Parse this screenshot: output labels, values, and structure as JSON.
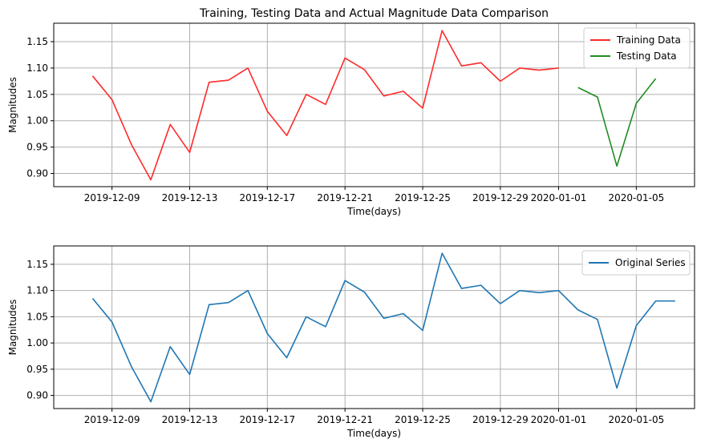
{
  "chart_data": [
    {
      "type": "line",
      "title": "Training, Testing Data and Actual Magnitude Data Comparison",
      "xlabel": "Time(days)",
      "ylabel": "Magnitudes",
      "ylim": [
        0.875,
        1.185
      ],
      "xlim": [
        "2019-12-06",
        "2020-01-08"
      ],
      "yticks": [
        0.9,
        0.95,
        1.0,
        1.05,
        1.1,
        1.15
      ],
      "ytick_labels": [
        "0.90",
        "0.95",
        "1.00",
        "1.05",
        "1.10",
        "1.15"
      ],
      "xticks": [
        "2019-12-09",
        "2019-12-13",
        "2019-12-17",
        "2019-12-21",
        "2019-12-25",
        "2019-12-29",
        "2020-01-01",
        "2020-01-05"
      ],
      "grid": true,
      "legend_position": "top-right",
      "series": [
        {
          "name": "Training Data",
          "color": "#ff2a2a",
          "x": [
            "2019-12-08",
            "2019-12-09",
            "2019-12-10",
            "2019-12-11",
            "2019-12-12",
            "2019-12-13",
            "2019-12-14",
            "2019-12-15",
            "2019-12-16",
            "2019-12-17",
            "2019-12-18",
            "2019-12-19",
            "2019-12-20",
            "2019-12-21",
            "2019-12-22",
            "2019-12-23",
            "2019-12-24",
            "2019-12-25",
            "2019-12-26",
            "2019-12-27",
            "2019-12-28",
            "2019-12-29",
            "2019-12-30",
            "2019-12-31",
            "2020-01-01"
          ],
          "y": [
            1.085,
            1.04,
            0.955,
            0.888,
            0.993,
            0.94,
            1.073,
            1.077,
            1.1,
            1.018,
            0.972,
            1.05,
            1.031,
            1.119,
            1.097,
            1.047,
            1.056,
            1.024,
            1.171,
            1.104,
            1.11,
            1.075,
            1.1,
            1.096,
            1.1
          ]
        },
        {
          "name": "Testing Data",
          "color": "#228b22",
          "x": [
            "2020-01-02",
            "2020-01-03",
            "2020-01-04",
            "2020-01-05",
            "2020-01-06"
          ],
          "y": [
            1.063,
            1.045,
            0.914,
            1.033,
            1.08
          ]
        }
      ]
    },
    {
      "type": "line",
      "title": "",
      "xlabel": "Time(days)",
      "ylabel": "Magnitudes",
      "ylim": [
        0.875,
        1.185
      ],
      "xlim": [
        "2019-12-06",
        "2020-01-08"
      ],
      "yticks": [
        0.9,
        0.95,
        1.0,
        1.05,
        1.1,
        1.15
      ],
      "ytick_labels": [
        "0.90",
        "0.95",
        "1.00",
        "1.05",
        "1.10",
        "1.15"
      ],
      "xticks": [
        "2019-12-09",
        "2019-12-13",
        "2019-12-17",
        "2019-12-21",
        "2019-12-25",
        "2019-12-29",
        "2020-01-01",
        "2020-01-05"
      ],
      "grid": true,
      "legend_position": "top-right",
      "series": [
        {
          "name": "Original Series",
          "color": "#1f77b4",
          "x": [
            "2019-12-08",
            "2019-12-09",
            "2019-12-10",
            "2019-12-11",
            "2019-12-12",
            "2019-12-13",
            "2019-12-14",
            "2019-12-15",
            "2019-12-16",
            "2019-12-17",
            "2019-12-18",
            "2019-12-19",
            "2019-12-20",
            "2019-12-21",
            "2019-12-22",
            "2019-12-23",
            "2019-12-24",
            "2019-12-25",
            "2019-12-26",
            "2019-12-27",
            "2019-12-28",
            "2019-12-29",
            "2019-12-30",
            "2019-12-31",
            "2020-01-01",
            "2020-01-02",
            "2020-01-03",
            "2020-01-04",
            "2020-01-05",
            "2020-01-06",
            "2020-01-07"
          ],
          "y": [
            1.085,
            1.04,
            0.955,
            0.888,
            0.993,
            0.94,
            1.073,
            1.077,
            1.1,
            1.018,
            0.972,
            1.05,
            1.031,
            1.119,
            1.097,
            1.047,
            1.056,
            1.024,
            1.171,
            1.104,
            1.11,
            1.075,
            1.1,
            1.096,
            1.1,
            1.063,
            1.045,
            0.914,
            1.033,
            1.08,
            1.08
          ]
        }
      ]
    }
  ]
}
